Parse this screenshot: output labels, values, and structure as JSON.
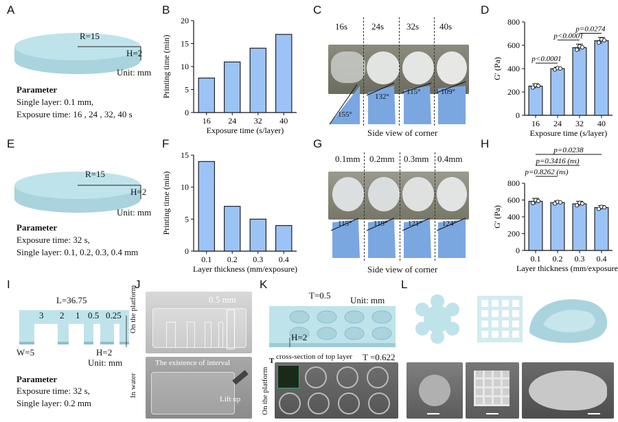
{
  "panels": {
    "A": {
      "letter": "A",
      "r_label": "R=15",
      "h_label": "H=2",
      "unit": "Unit: mm",
      "param_title": "Parameter",
      "param_line1": "Single layer: 0.1 mm,",
      "param_line2": "Exposure time: 16 , 24 , 32, 40 s"
    },
    "E": {
      "letter": "E",
      "r_label": "R=15",
      "h_label": "H=2",
      "unit": "Unit: mm",
      "param_title": "Parameter",
      "param_line1": "Exposure time: 32 s,",
      "param_line2": "Single layer: 0.1, 0.2, 0.3, 0.4 mm"
    },
    "C": {
      "letter": "C",
      "times": [
        "16s",
        "24s",
        "32s",
        "40s"
      ],
      "angles": [
        "155°",
        "132°",
        "115°",
        "109°"
      ],
      "caption": "Side view of corner"
    },
    "G": {
      "letter": "G",
      "thickness": [
        "0.1mm",
        "0.2mm",
        "0.3mm",
        "0.4mm"
      ],
      "angles": [
        "115°",
        "119°",
        "121°",
        "124°"
      ],
      "caption": "Side view of corner"
    },
    "I": {
      "letter": "I",
      "l_label": "L=36.75",
      "slots": [
        "3",
        "2",
        "1",
        "0.5",
        "0.25"
      ],
      "w_label": "W=5",
      "h_label": "H=2",
      "unit": "Unit: mm",
      "param_title": "Parameter",
      "param_line1": "Exposure time: 32 s,",
      "param_line2": "Single layer: 0.2 mm"
    },
    "J": {
      "letter": "J",
      "top_side": "On the platform",
      "top_note": "0.5 mm",
      "bottom_side": "In water",
      "bottom_note": "The existence of interval",
      "lift": "Lift up"
    },
    "K": {
      "letter": "K",
      "t_label": "T=0.5",
      "unit": "Unit: mm",
      "h_label": "H=2",
      "bottom_side": "On the platform",
      "cross_label": "cross-section of top layer",
      "t_value": "T =0.622"
    },
    "L": {
      "letter": "L"
    }
  },
  "chart_data": [
    {
      "id": "B",
      "type": "bar",
      "letter": "B",
      "categories": [
        "16",
        "24",
        "32",
        "40"
      ],
      "values": [
        7.5,
        11,
        14,
        17
      ],
      "xlabel": "Exposure time (s/layer)",
      "ylabel": "Printing time (min)",
      "ylim": [
        0,
        20
      ],
      "yticks": [
        0,
        5,
        10,
        15,
        20
      ],
      "bar_color": "#9cc3f5"
    },
    {
      "id": "D",
      "type": "bar",
      "letter": "D",
      "categories": [
        "16",
        "24",
        "32",
        "40"
      ],
      "values": [
        250,
        400,
        580,
        640
      ],
      "errors": [
        20,
        12,
        30,
        28
      ],
      "xlabel": "Exposure time (s/layer)",
      "ylabel": "G' (Pa)",
      "ylim": [
        0,
        800
      ],
      "yticks": [
        0,
        200,
        400,
        600,
        800
      ],
      "bar_color": "#9cc3f5",
      "annotations": [
        {
          "text": "p<0.0001",
          "from": 0,
          "to": 1
        },
        {
          "text": "p<0.0001",
          "from": 1,
          "to": 2
        },
        {
          "text": "p=0.0274",
          "from": 2,
          "to": 3
        }
      ]
    },
    {
      "id": "F",
      "type": "bar",
      "letter": "F",
      "categories": [
        "0.1",
        "0.2",
        "0.3",
        "0.4"
      ],
      "values": [
        14,
        7,
        5,
        4
      ],
      "xlabel": "Layer thickness (mm/exposure)",
      "ylabel": "Printing time (min)",
      "ylim": [
        0,
        15
      ],
      "yticks": [
        0,
        5,
        10,
        15
      ],
      "bar_color": "#9cc3f5"
    },
    {
      "id": "H",
      "type": "bar",
      "letter": "H",
      "categories": [
        "0.1",
        "0.2",
        "0.3",
        "0.4"
      ],
      "values": [
        585,
        570,
        555,
        510
      ],
      "errors": [
        35,
        20,
        30,
        25
      ],
      "xlabel": "Layer thickness (mm/exposure)",
      "ylabel": "G' (Pa)",
      "ylim": [
        0,
        800
      ],
      "yticks": [
        0,
        200,
        400,
        600,
        800
      ],
      "bar_color": "#9cc3f5",
      "annotations": [
        {
          "text": "p=0.8262 (ns)",
          "from": 0,
          "to": 1
        },
        {
          "text": "p=0.3416 (ns)",
          "from": 0,
          "to": 2
        },
        {
          "text": "p=0.0238",
          "from": 0,
          "to": 3
        }
      ]
    }
  ]
}
